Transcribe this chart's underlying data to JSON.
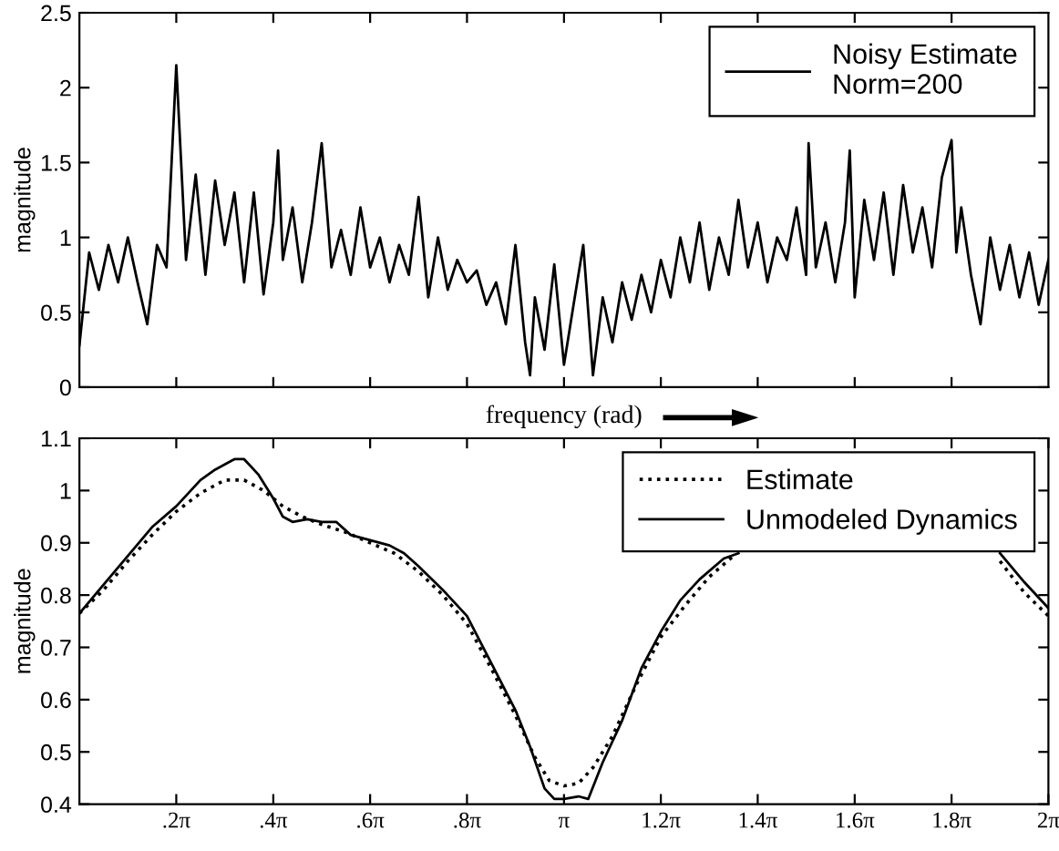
{
  "chart_data": [
    {
      "type": "line",
      "ylabel": "magnitude",
      "xlabel": "frequency (rad)",
      "legend": "top right",
      "grid": false,
      "tick_labels": "y",
      "line_style": "solid",
      "xlim": [
        0,
        6.283
      ],
      "ylim": [
        0,
        2.5
      ],
      "yticks": [
        0,
        0.5,
        1,
        1.5,
        2,
        2.5
      ],
      "series": [
        {
          "name": "Noisy Estimate\nNorm=200",
          "color": "#000000",
          "x": [
            0,
            0.063,
            0.126,
            0.188,
            0.251,
            0.314,
            0.377,
            0.44,
            0.503,
            0.565,
            0.628,
            0.691,
            0.754,
            0.817,
            0.88,
            0.942,
            1.005,
            1.068,
            1.131,
            1.194,
            1.257,
            1.288,
            1.319,
            1.382,
            1.445,
            1.508,
            1.571,
            1.634,
            1.696,
            1.759,
            1.822,
            1.885,
            1.948,
            2.011,
            2.073,
            2.136,
            2.199,
            2.262,
            2.325,
            2.388,
            2.45,
            2.513,
            2.576,
            2.639,
            2.702,
            2.765,
            2.827,
            2.89,
            2.922,
            2.953,
            3.016,
            3.079,
            3.142,
            3.204,
            3.267,
            3.33,
            3.393,
            3.456,
            3.519,
            3.581,
            3.644,
            3.707,
            3.77,
            3.833,
            3.896,
            3.958,
            4.021,
            4.084,
            4.147,
            4.21,
            4.273,
            4.335,
            4.398,
            4.461,
            4.524,
            4.587,
            4.65,
            4.712,
            4.728,
            4.775,
            4.838,
            4.901,
            4.964,
            4.995,
            5.027,
            5.089,
            5.152,
            5.215,
            5.278,
            5.341,
            5.404,
            5.466,
            5.529,
            5.592,
            5.655,
            5.686,
            5.718,
            5.781,
            5.843,
            5.906,
            5.969,
            6.032,
            6.095,
            6.158,
            6.22,
            6.283
          ],
          "values": [
            0.28,
            0.9,
            0.65,
            0.95,
            0.7,
            1.0,
            0.7,
            0.42,
            0.95,
            0.8,
            2.15,
            0.85,
            1.42,
            0.75,
            1.38,
            0.95,
            1.3,
            0.7,
            1.3,
            0.62,
            1.1,
            1.58,
            0.85,
            1.2,
            0.7,
            1.1,
            1.63,
            0.8,
            1.05,
            0.75,
            1.2,
            0.8,
            1.0,
            0.7,
            0.95,
            0.75,
            1.27,
            0.6,
            1.0,
            0.65,
            0.85,
            0.7,
            0.78,
            0.55,
            0.7,
            0.42,
            0.95,
            0.3,
            0.08,
            0.6,
            0.25,
            0.82,
            0.15,
            0.55,
            0.95,
            0.08,
            0.6,
            0.3,
            0.7,
            0.45,
            0.75,
            0.5,
            0.85,
            0.6,
            1.0,
            0.7,
            1.1,
            0.65,
            1.0,
            0.75,
            1.25,
            0.8,
            1.1,
            0.7,
            1.0,
            0.85,
            1.2,
            0.75,
            1.63,
            0.8,
            1.1,
            0.7,
            1.1,
            1.58,
            0.6,
            1.25,
            0.85,
            1.3,
            0.75,
            1.35,
            0.9,
            1.2,
            0.8,
            1.4,
            1.65,
            0.9,
            1.2,
            0.75,
            0.42,
            1.0,
            0.65,
            0.95,
            0.6,
            0.9,
            0.55,
            0.85
          ]
        }
      ]
    },
    {
      "type": "line",
      "ylabel": "magnitude",
      "legend": "top right",
      "grid": false,
      "xlim": [
        0,
        6.283
      ],
      "ylim": [
        0.4,
        1.1
      ],
      "yticks": [
        0.4,
        0.5,
        0.6,
        0.7,
        0.8,
        0.9,
        1,
        1.1
      ],
      "xticks": [
        {
          "value": 0.628,
          "label": ".2π"
        },
        {
          "value": 1.257,
          "label": ".4π"
        },
        {
          "value": 1.885,
          "label": ".6π"
        },
        {
          "value": 2.513,
          "label": ".8π"
        },
        {
          "value": 3.142,
          "label": "π"
        },
        {
          "value": 3.77,
          "label": "1.2π"
        },
        {
          "value": 4.398,
          "label": "1.4π"
        },
        {
          "value": 5.027,
          "label": "1.6π"
        },
        {
          "value": 5.655,
          "label": "1.8π"
        },
        {
          "value": 6.283,
          "label": "2π"
        }
      ],
      "series": [
        {
          "name": "Estimate",
          "color": "#000000",
          "line_style": "dotted",
          "x": [
            0,
            0.157,
            0.314,
            0.471,
            0.628,
            0.785,
            0.942,
            1.068,
            1.194,
            1.319,
            1.445,
            1.571,
            1.728,
            1.885,
            2.042,
            2.199,
            2.356,
            2.513,
            2.67,
            2.827,
            2.953,
            3.047,
            3.142,
            3.236,
            3.33,
            3.456,
            3.613,
            3.77,
            3.927,
            4.084,
            4.241,
            4.398,
            5.969,
            6.126,
            6.283
          ],
          "values": [
            0.765,
            0.81,
            0.865,
            0.915,
            0.96,
            0.995,
            1.02,
            1.02,
            1.0,
            0.97,
            0.95,
            0.935,
            0.92,
            0.9,
            0.88,
            0.845,
            0.8,
            0.745,
            0.66,
            0.57,
            0.49,
            0.445,
            0.435,
            0.44,
            0.47,
            0.53,
            0.63,
            0.72,
            0.78,
            0.835,
            0.875,
            null,
            0.865,
            0.805,
            0.76
          ]
        },
        {
          "name": "Unmodeled Dynamics",
          "color": "#000000",
          "line_style": "solid",
          "x": [
            0,
            0.157,
            0.314,
            0.471,
            0.628,
            0.785,
            0.88,
            1.005,
            1.068,
            1.162,
            1.257,
            1.319,
            1.382,
            1.477,
            1.571,
            1.665,
            1.759,
            1.885,
            2.011,
            2.105,
            2.199,
            2.356,
            2.513,
            2.67,
            2.827,
            2.922,
            3.016,
            3.079,
            3.142,
            3.236,
            3.299,
            3.393,
            3.519,
            3.644,
            3.77,
            3.896,
            4.021,
            4.178,
            4.273,
            4.398,
            5.969,
            6.126,
            6.283
          ],
          "values": [
            0.765,
            0.82,
            0.875,
            0.93,
            0.97,
            1.02,
            1.04,
            1.06,
            1.06,
            1.03,
            0.985,
            0.95,
            0.94,
            0.945,
            0.94,
            0.94,
            0.915,
            0.905,
            0.895,
            0.88,
            0.855,
            0.81,
            0.76,
            0.67,
            0.58,
            0.51,
            0.43,
            0.41,
            0.41,
            0.415,
            0.41,
            0.48,
            0.56,
            0.66,
            0.73,
            0.79,
            0.83,
            0.87,
            0.88,
            null,
            0.88,
            0.825,
            0.775
          ]
        }
      ]
    }
  ]
}
